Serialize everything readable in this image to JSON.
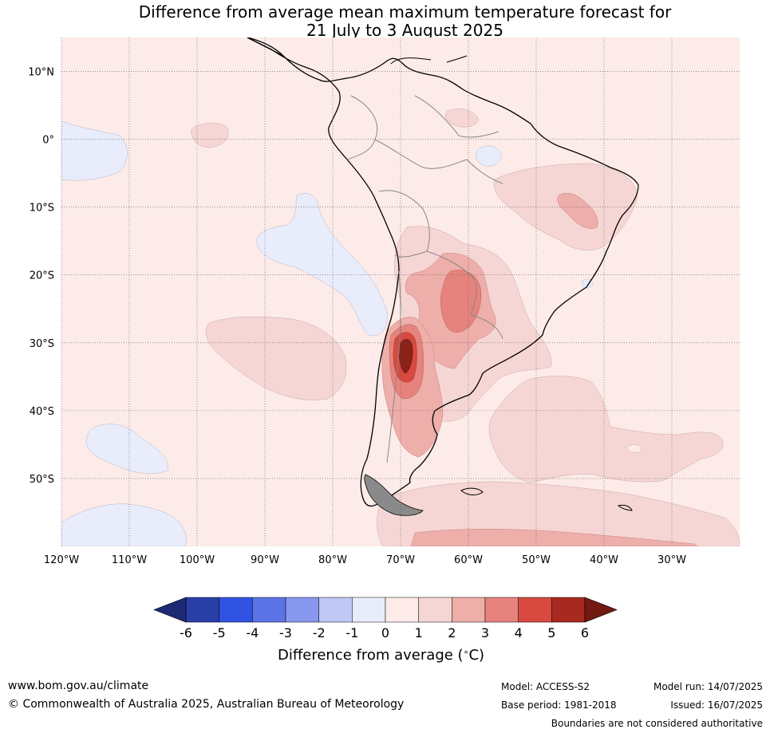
{
  "title": {
    "line1": "Difference from average mean maximum temperature forecast for",
    "line2": "21 July to 3 August 2025"
  },
  "map": {
    "lat_labels": [
      "10°N",
      "0°",
      "10°S",
      "20°S",
      "30°S",
      "40°S",
      "50°S"
    ],
    "lat_values": [
      10,
      0,
      -10,
      -20,
      -30,
      -40,
      -50
    ],
    "lon_labels": [
      "120°W",
      "110°W",
      "100°W",
      "90°W",
      "80°W",
      "70°W",
      "60°W",
      "50°W",
      "40°W",
      "30°W"
    ],
    "lon_values": [
      -120,
      -110,
      -100,
      -90,
      -80,
      -70,
      -60,
      -50,
      -40,
      -30
    ],
    "extent": {
      "lon_min": -120,
      "lon_max": -20,
      "lat_min": -60,
      "lat_max": 15
    },
    "background_color": "#fcebe8"
  },
  "colorbar": {
    "ticks": [
      "-6",
      "-5",
      "-4",
      "-3",
      "-2",
      "-1",
      "0",
      "1",
      "2",
      "3",
      "4",
      "5",
      "6"
    ],
    "colors": [
      "#2a3ea8",
      "#2f52e3",
      "#5c73e6",
      "#8898ef",
      "#c0c8f4",
      "#e8ecfb",
      "#fcebe8",
      "#f6d6d4",
      "#eeaeaa",
      "#e6837c",
      "#d84a3f",
      "#a8291f"
    ],
    "under_color": "#1d2a74",
    "over_color": "#731a12",
    "label": "Difference from average ($^\\circ$C)",
    "label_text": "Difference from average (",
    "label_unit": "C)",
    "label_deg": "∘"
  },
  "footer": {
    "website": "www.bom.gov.au/climate",
    "copyright": "© Commonwealth of Australia 2025, Australian Bureau of Meteorology",
    "model": "Model: ACCESS-S2",
    "base_period": "Base period: 1981-2018",
    "model_run": "Model run: 14/07/2025",
    "issued": "Issued: 16/07/2025",
    "disclaimer": "Boundaries are not considered authoritative"
  }
}
